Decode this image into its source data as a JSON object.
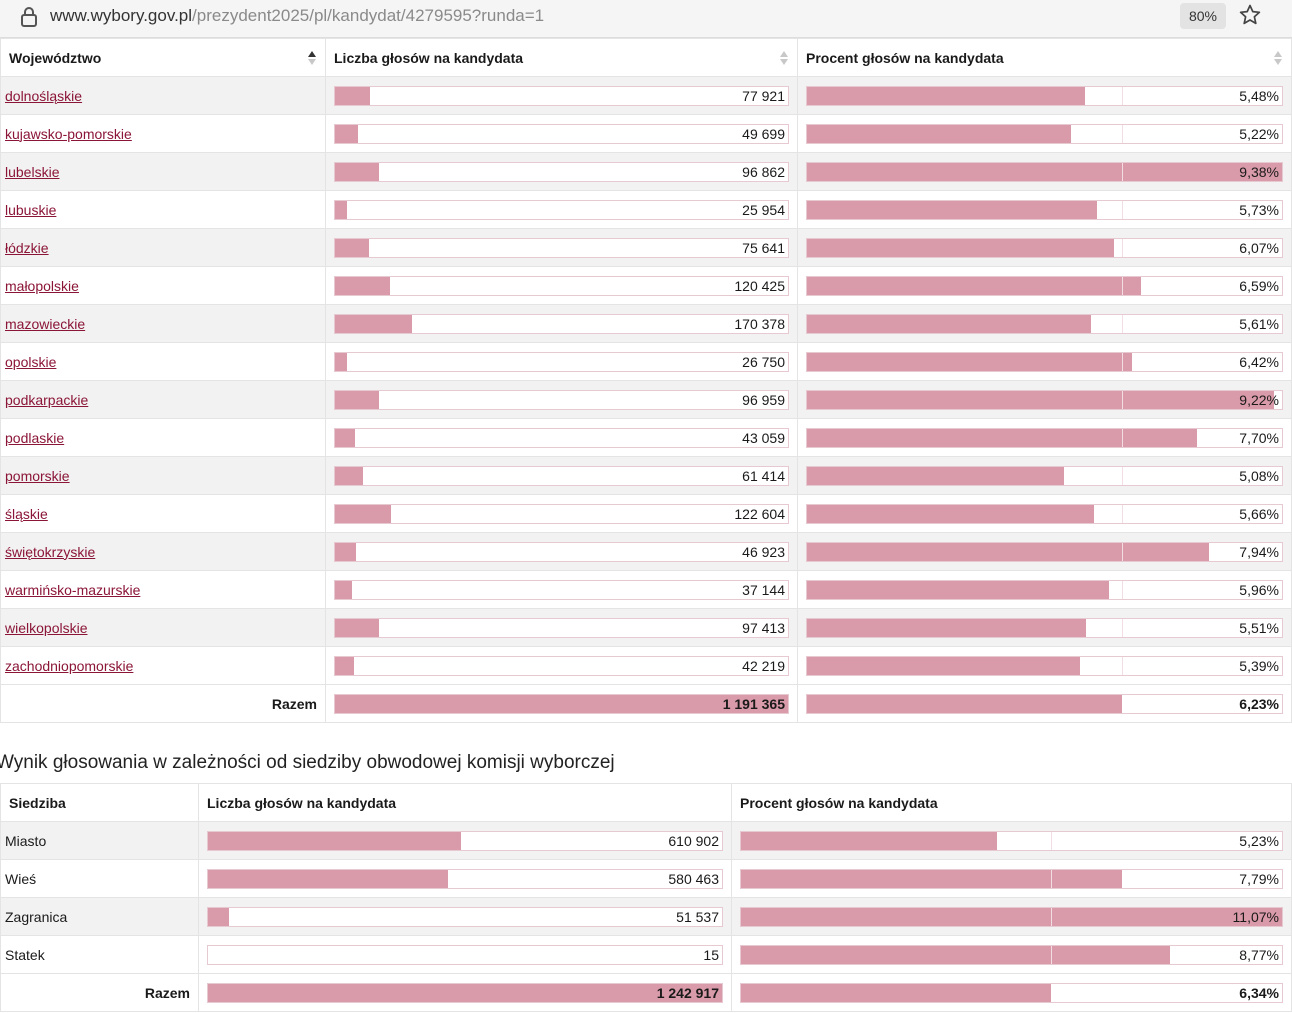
{
  "browser": {
    "url_host": "www.wybory.gov.pl",
    "url_path": "/prezydent2025/pl/kandydat/4279595?runda=1",
    "zoom": "80%"
  },
  "table1": {
    "headers": {
      "region": "Województwo",
      "votes": "Liczba głosów na kandydata",
      "percent": "Procent głosów na kandydata"
    },
    "vote_scale_max": 1000000,
    "percent_scale_max": 9.38,
    "rows": [
      {
        "name": "dolnośląskie",
        "votes": "77 921",
        "votes_num": 77921,
        "percent": "5,48%",
        "percent_num": 5.48
      },
      {
        "name": "kujawsko-pomorskie",
        "votes": "49 699",
        "votes_num": 49699,
        "percent": "5,22%",
        "percent_num": 5.22
      },
      {
        "name": "lubelskie",
        "votes": "96 862",
        "votes_num": 96862,
        "percent": "9,38%",
        "percent_num": 9.38
      },
      {
        "name": "lubuskie",
        "votes": "25 954",
        "votes_num": 25954,
        "percent": "5,73%",
        "percent_num": 5.73
      },
      {
        "name": "łódzkie",
        "votes": "75 641",
        "votes_num": 75641,
        "percent": "6,07%",
        "percent_num": 6.07
      },
      {
        "name": "małopolskie",
        "votes": "120 425",
        "votes_num": 120425,
        "percent": "6,59%",
        "percent_num": 6.59
      },
      {
        "name": "mazowieckie",
        "votes": "170 378",
        "votes_num": 170378,
        "percent": "5,61%",
        "percent_num": 5.61
      },
      {
        "name": "opolskie",
        "votes": "26 750",
        "votes_num": 26750,
        "percent": "6,42%",
        "percent_num": 6.42
      },
      {
        "name": "podkarpackie",
        "votes": "96 959",
        "votes_num": 96959,
        "percent": "9,22%",
        "percent_num": 9.22
      },
      {
        "name": "podlaskie",
        "votes": "43 059",
        "votes_num": 43059,
        "percent": "7,70%",
        "percent_num": 7.7
      },
      {
        "name": "pomorskie",
        "votes": "61 414",
        "votes_num": 61414,
        "percent": "5,08%",
        "percent_num": 5.08
      },
      {
        "name": "śląskie",
        "votes": "122 604",
        "votes_num": 122604,
        "percent": "5,66%",
        "percent_num": 5.66
      },
      {
        "name": "świętokrzyskie",
        "votes": "46 923",
        "votes_num": 46923,
        "percent": "7,94%",
        "percent_num": 7.94
      },
      {
        "name": "warmińsko-mazurskie",
        "votes": "37 144",
        "votes_num": 37144,
        "percent": "5,96%",
        "percent_num": 5.96
      },
      {
        "name": "wielkopolskie",
        "votes": "97 413",
        "votes_num": 97413,
        "percent": "5,51%",
        "percent_num": 5.51
      },
      {
        "name": "zachodniopomorskie",
        "votes": "42 219",
        "votes_num": 42219,
        "percent": "5,39%",
        "percent_num": 5.39
      }
    ],
    "total": {
      "label": "Razem",
      "votes": "1 191 365",
      "votes_num": 1191365,
      "percent": "6,23%",
      "percent_num": 6.23
    }
  },
  "table2": {
    "title": "Wynik głosowania w zależności od siedziby obwodowej komisji wyborczej",
    "headers": {
      "seat": "Siedziba",
      "votes": "Liczba głosów na kandydata",
      "percent": "Procent głosów na kandydata"
    },
    "vote_scale_max": 1242917,
    "percent_scale_max": 11.07,
    "rows": [
      {
        "name": "Miasto",
        "votes": "610 902",
        "votes_num": 610902,
        "percent": "5,23%",
        "percent_num": 5.23
      },
      {
        "name": "Wieś",
        "votes": "580 463",
        "votes_num": 580463,
        "percent": "7,79%",
        "percent_num": 7.79
      },
      {
        "name": "Zagranica",
        "votes": "51 537",
        "votes_num": 51537,
        "percent": "11,07%",
        "percent_num": 11.07
      },
      {
        "name": "Statek",
        "votes": "15",
        "votes_num": 15,
        "percent": "8,77%",
        "percent_num": 8.77
      }
    ],
    "total": {
      "label": "Razem",
      "votes": "1 242 917",
      "votes_num": 1242917,
      "percent": "6,34%",
      "percent_num": 6.34
    }
  }
}
